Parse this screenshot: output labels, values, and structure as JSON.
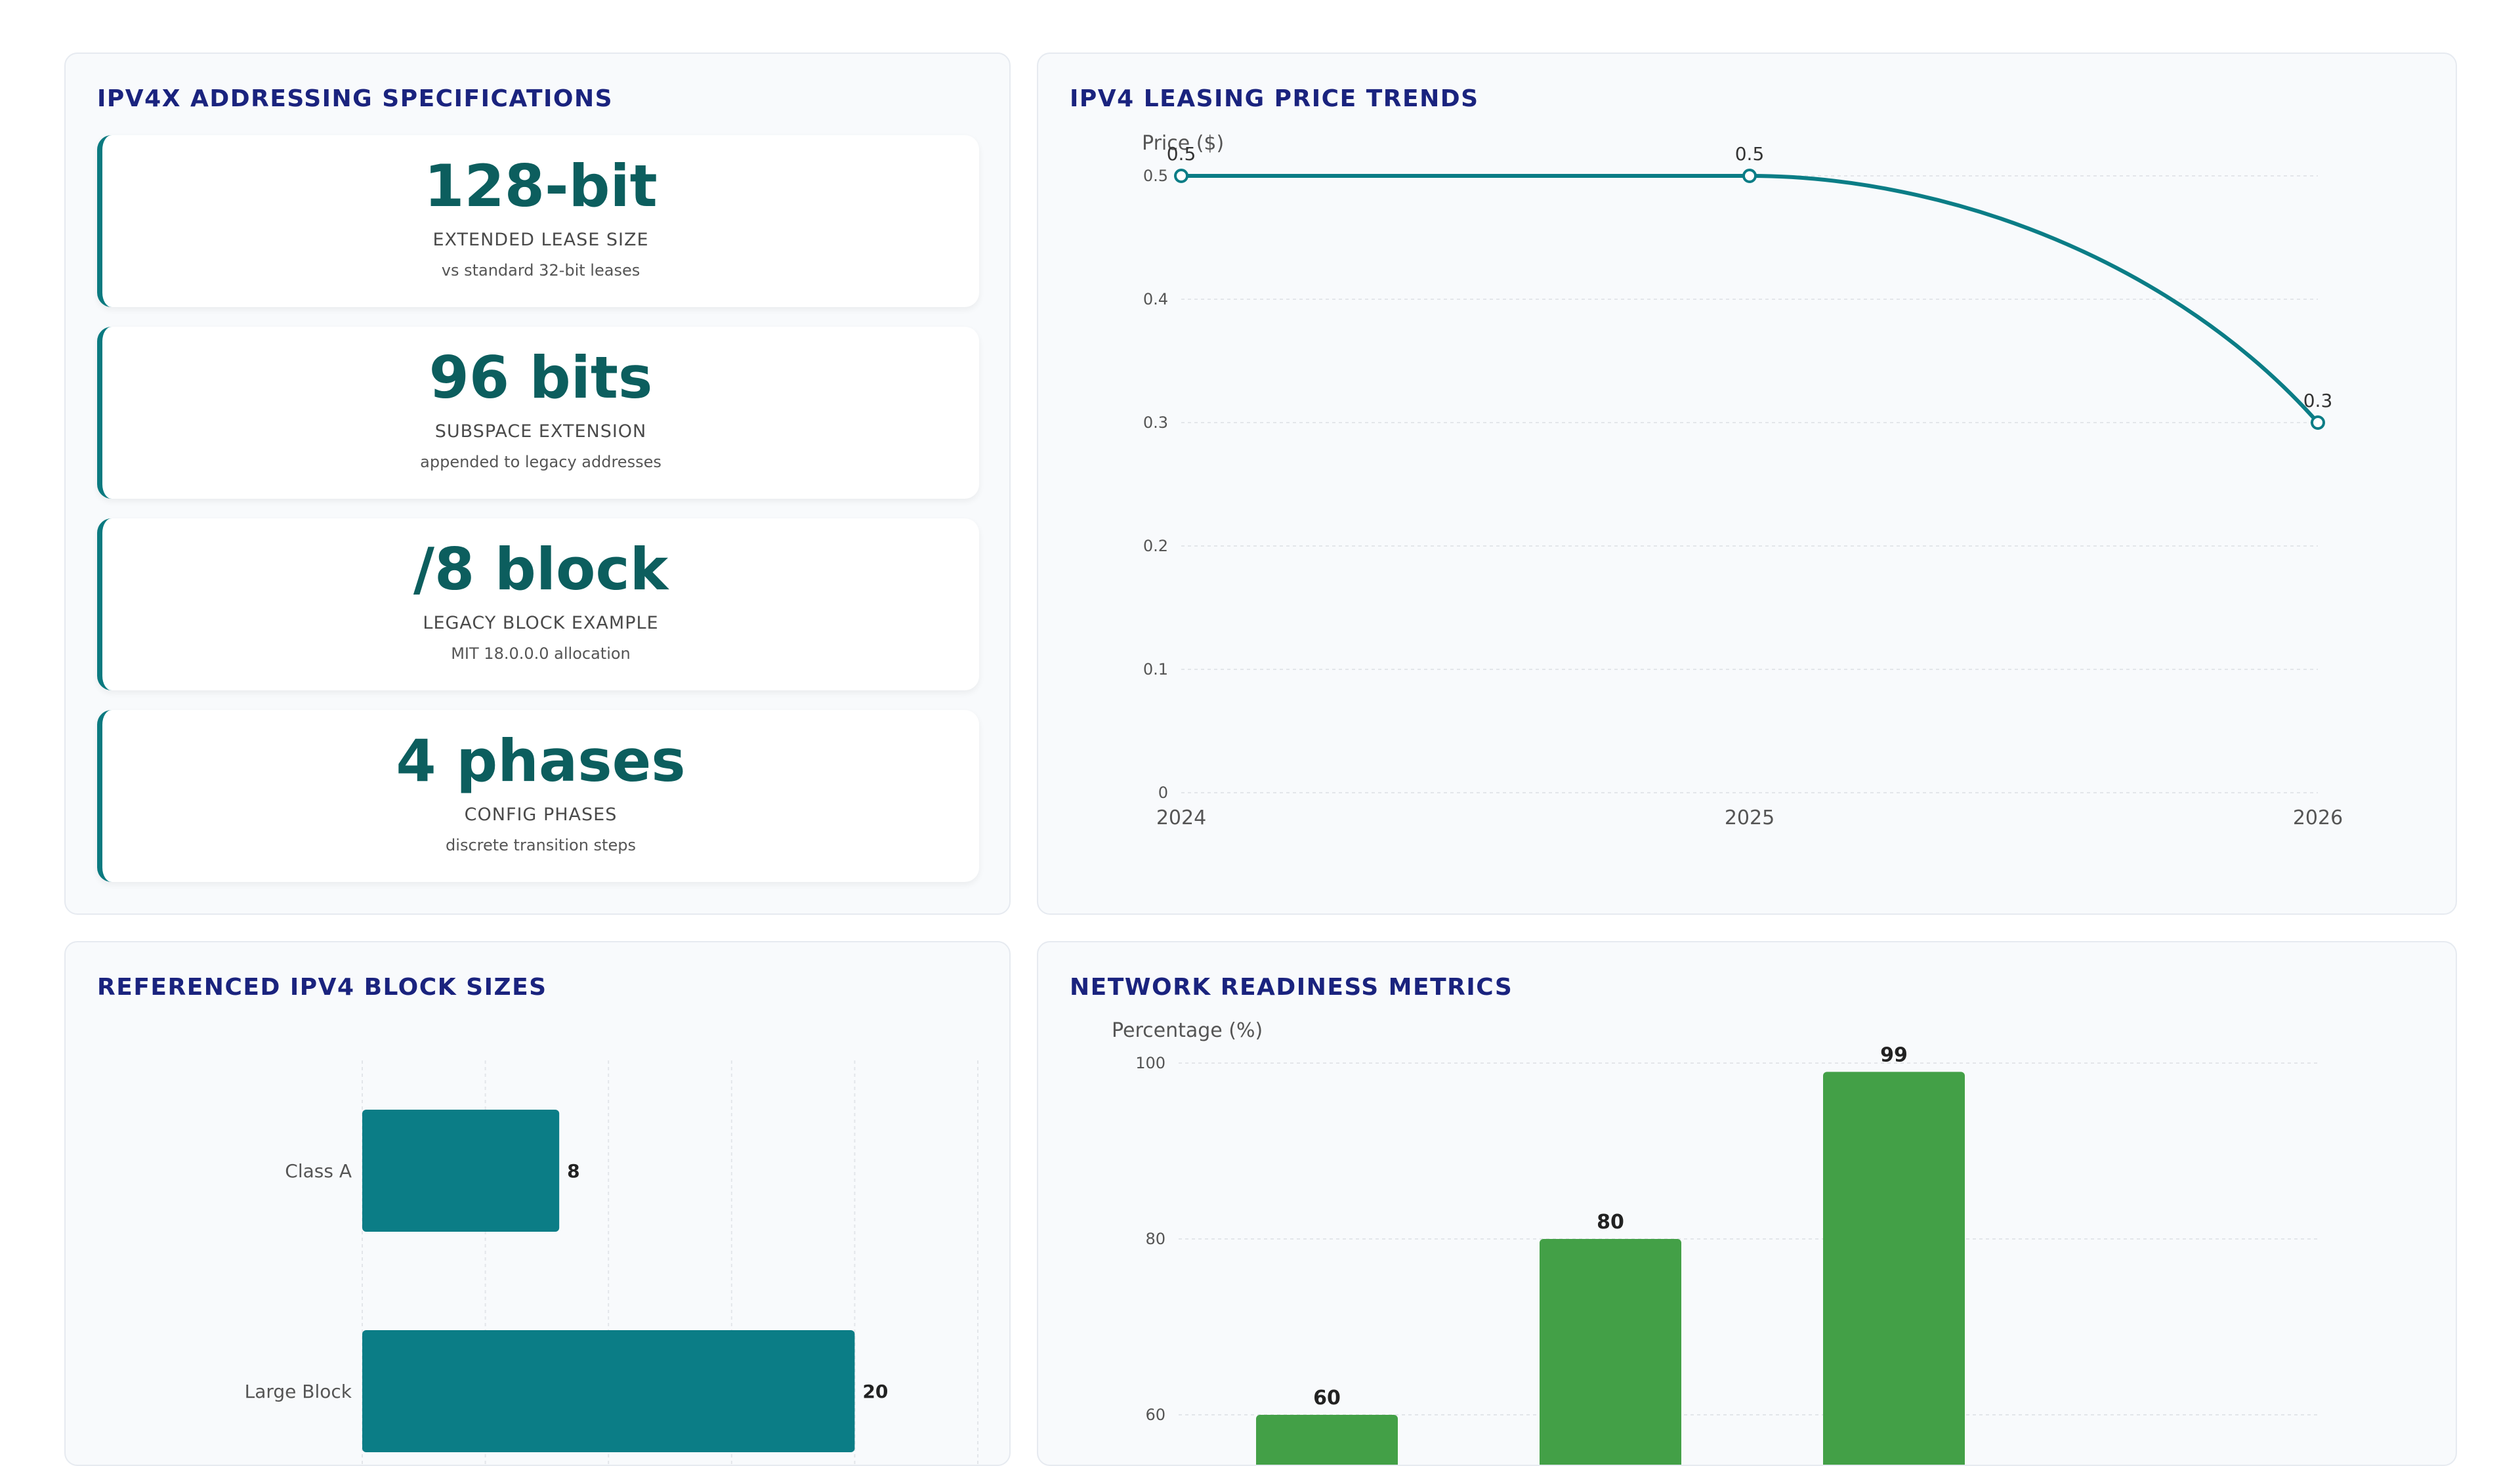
{
  "specs": {
    "title": "IPV4X ADDRESSING SPECIFICATIONS",
    "items": [
      {
        "value": "128-bit",
        "label": "EXTENDED LEASE SIZE",
        "desc": "vs standard 32-bit leases"
      },
      {
        "value": "96 bits",
        "label": "SUBSPACE EXTENSION",
        "desc": "appended to legacy addresses"
      },
      {
        "value": "/8 block",
        "label": "LEGACY BLOCK EXAMPLE",
        "desc": "MIT 18.0.0.0 allocation"
      },
      {
        "value": "4 phases",
        "label": "CONFIG PHASES",
        "desc": "discrete transition steps"
      }
    ]
  },
  "price_panel": {
    "title": "IPV4 LEASING PRICE TRENDS"
  },
  "blocks_panel": {
    "title": "REFERENCED IPV4 BLOCK SIZES"
  },
  "readiness_panel": {
    "title": "NETWORK READINESS METRICS"
  },
  "colors": {
    "teal": "#0b7d86",
    "green": "#43a047",
    "title": "#1a237e"
  },
  "chart_data": [
    {
      "type": "line",
      "title": "IPV4 LEASING PRICE TRENDS",
      "ylabel": "Price ($)",
      "x": [
        "2024",
        "2025",
        "2026"
      ],
      "values": [
        0.5,
        0.5,
        0.3
      ],
      "yticks": [
        0,
        0.1,
        0.2,
        0.3,
        0.4,
        0.5
      ],
      "ylim": [
        0,
        0.5
      ],
      "grid": true
    },
    {
      "type": "bar",
      "orientation": "horizontal",
      "title": "REFERENCED IPV4 BLOCK SIZES",
      "categories": [
        "Class A",
        "Large Block"
      ],
      "values": [
        8,
        20
      ],
      "xlim": [
        0,
        25
      ],
      "grid": true
    },
    {
      "type": "bar",
      "title": "NETWORK READINESS METRICS",
      "ylabel": "Percentage (%)",
      "values": [
        60,
        80,
        99
      ],
      "yticks": [
        60,
        80,
        100
      ],
      "ylim": [
        0,
        100
      ],
      "grid": true
    }
  ]
}
